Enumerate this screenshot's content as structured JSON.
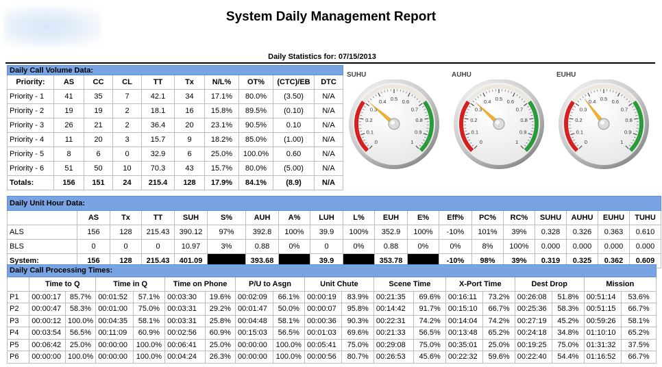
{
  "report": {
    "title": "System Daily Management Report",
    "stats_date": "Daily Statistics for: 07/15/2013"
  },
  "volume": {
    "section_title": "Daily Call Volume Data:",
    "headers": [
      "Priority:",
      "AS",
      "CC",
      "CL",
      "TT",
      "Tx",
      "N/L%",
      "OT%",
      "(CTC)/EB",
      "DTC"
    ],
    "rows": [
      [
        "Priority - 1",
        "41",
        "35",
        "7",
        "42.1",
        "34",
        "17.1%",
        "80.0%",
        "(3.50)",
        "N/A"
      ],
      [
        "Priority - 2",
        "19",
        "19",
        "2",
        "18.1",
        "16",
        "15.8%",
        "89.5%",
        "(0.10)",
        "N/A"
      ],
      [
        "Priority - 3",
        "26",
        "21",
        "2",
        "36.4",
        "20",
        "23.1%",
        "90.5%",
        "0.10",
        "N/A"
      ],
      [
        "Priority - 4",
        "11",
        "20",
        "3",
        "15.7",
        "9",
        "18.2%",
        "85.0%",
        "(1.00)",
        "N/A"
      ],
      [
        "Priority - 5",
        "8",
        "6",
        "0",
        "32.9",
        "6",
        "25.0%",
        "100.0%",
        "0.60",
        "N/A"
      ],
      [
        "Priority - 6",
        "51",
        "50",
        "10",
        "70.3",
        "43",
        "15.7%",
        "80.0%",
        "(5.00)",
        "N/A"
      ]
    ],
    "totals": [
      "Totals:",
      "156",
      "151",
      "24",
      "215.4",
      "128",
      "17.9%",
      "84.1%",
      "(8.9)",
      "N/A"
    ]
  },
  "gauges": [
    {
      "label": "SUHU",
      "value": 0.319
    },
    {
      "label": "AUHU",
      "value": 0.325
    },
    {
      "label": "EUHU",
      "value": 0.362
    }
  ],
  "gauge_scale": {
    "ticks": [
      "0",
      "0.1",
      "0.2",
      "0.3",
      "0.4",
      "0.5",
      "0.6",
      "0.7",
      "0.8",
      "0.9",
      "1"
    ],
    "min": 0,
    "max": 1,
    "colors": {
      "low": "#d42020",
      "mid": "#ece8e0",
      "high": "#2a9a3a",
      "needle": "#f0b030"
    }
  },
  "units": {
    "section_title": "Daily Unit Hour Data:",
    "headers": [
      "",
      "AS",
      "Tx",
      "TT",
      "SUH",
      "S%",
      "AUH",
      "A%",
      "LUH",
      "L%",
      "EUH",
      "E%",
      "Eff%",
      "PC%",
      "RC%",
      "SUHU",
      "AUHU",
      "EUHU",
      "TUHU"
    ],
    "rows": [
      [
        "ALS",
        "156",
        "128",
        "215.43",
        "390.12",
        "97%",
        "392.8",
        "100%",
        "39.9",
        "100%",
        "352.9",
        "100%",
        "-10%",
        "101%",
        "39%",
        "0.328",
        "0.326",
        "0.363",
        "0.610"
      ],
      [
        "BLS",
        "0",
        "0",
        "0",
        "10.97",
        "3%",
        "0.88",
        "0%",
        "0",
        "0%",
        "0.88",
        "0%",
        "0%",
        "8%",
        "100%",
        "0.000",
        "0.000",
        "0.000",
        "0.000"
      ],
      [
        "System:",
        "156",
        "128",
        "215.43",
        "401.09",
        "",
        "393.68",
        "",
        "39.9",
        "",
        "353.78",
        "",
        "-10%",
        "98%",
        "39%",
        "0.319",
        "0.325",
        "0.362",
        "0.609"
      ]
    ]
  },
  "processing": {
    "section_title": "Daily Call Processing Times:",
    "headers": [
      "",
      "Time to Q",
      "Time in Q",
      "Time on Phone",
      "P/U to Asgn",
      "Unit Chute",
      "Scene Time",
      "X-Port Time",
      "Dest Drop",
      "Mission"
    ],
    "rows": [
      [
        "P1",
        "00:00:17",
        "85.7%",
        "00:01:52",
        "57.1%",
        "00:03:30",
        "19.6%",
        "00:02:09",
        "66.1%",
        "00:00:19",
        "83.9%",
        "00:21:35",
        "69.6%",
        "00:16:11",
        "73.2%",
        "00:26:08",
        "51.8%",
        "00:51:14",
        "53.6%"
      ],
      [
        "P2",
        "00:00:47",
        "58.3%",
        "00:01:00",
        "75.0%",
        "00:03:31",
        "29.2%",
        "00:01:47",
        "50.0%",
        "00:00:07",
        "95.8%",
        "00:14:42",
        "91.7%",
        "00:15:10",
        "66.7%",
        "00:25:36",
        "58.3%",
        "00:51:15",
        "66.7%"
      ],
      [
        "P3",
        "00:00:12",
        "100.0%",
        "00:04:35",
        "58.1%",
        "00:03:31",
        "25.8%",
        "00:04:48",
        "58.1%",
        "00:00:36",
        "90.3%",
        "00:22:31",
        "74.2%",
        "00:14:04",
        "74.2%",
        "00:27:19",
        "45.2%",
        "00:59:26",
        "58.1%"
      ],
      [
        "P4",
        "00:03:54",
        "56.5%",
        "00:11:09",
        "60.9%",
        "00:02:56",
        "60.9%",
        "00:15:03",
        "56.5%",
        "00:01:03",
        "69.6%",
        "00:21:33",
        "56.5%",
        "00:13:48",
        "65.2%",
        "00:24:18",
        "34.8%",
        "01:10:10",
        "65.2%"
      ],
      [
        "P5",
        "00:06:42",
        "25.0%",
        "00:00:00",
        "100.0%",
        "00:06:41",
        "25.0%",
        "00:00:00",
        "100.0%",
        "00:05:41",
        "75.0%",
        "00:29:08",
        "75.0%",
        "00:35:01",
        "25.0%",
        "00:19:25",
        "75.0%",
        "01:31:32",
        "37.5%"
      ],
      [
        "P6",
        "00:00:00",
        "100.0%",
        "00:00:00",
        "100.0%",
        "00:04:24",
        "26.3%",
        "00:00:00",
        "100.0%",
        "00:00:56",
        "80.7%",
        "00:26:53",
        "45.6%",
        "00:22:32",
        "59.6%",
        "00:22:40",
        "54.4%",
        "01:16:52",
        "66.7%"
      ]
    ]
  }
}
